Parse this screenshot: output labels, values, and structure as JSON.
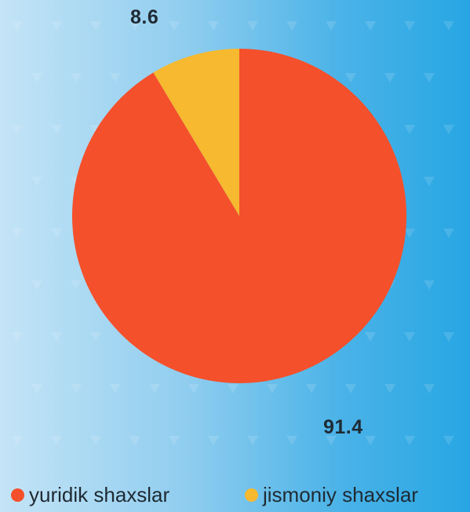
{
  "chart_data": {
    "type": "pie",
    "categories": [
      "yuridik shaxslar",
      "jismoniy shaxslar"
    ],
    "values": [
      91.4,
      8.6
    ],
    "data_labels": [
      "91.4",
      "8.6"
    ],
    "colors": [
      "#f4502b",
      "#f6b92f"
    ],
    "start_angle": "12 o'clock",
    "direction": "clockwise",
    "legend_position": "bottom"
  },
  "legend": {
    "items": [
      {
        "label": "yuridik shaxslar",
        "color": "#f4502b"
      },
      {
        "label": "jismoniy shaxslar",
        "color": "#f6b92f"
      }
    ]
  }
}
